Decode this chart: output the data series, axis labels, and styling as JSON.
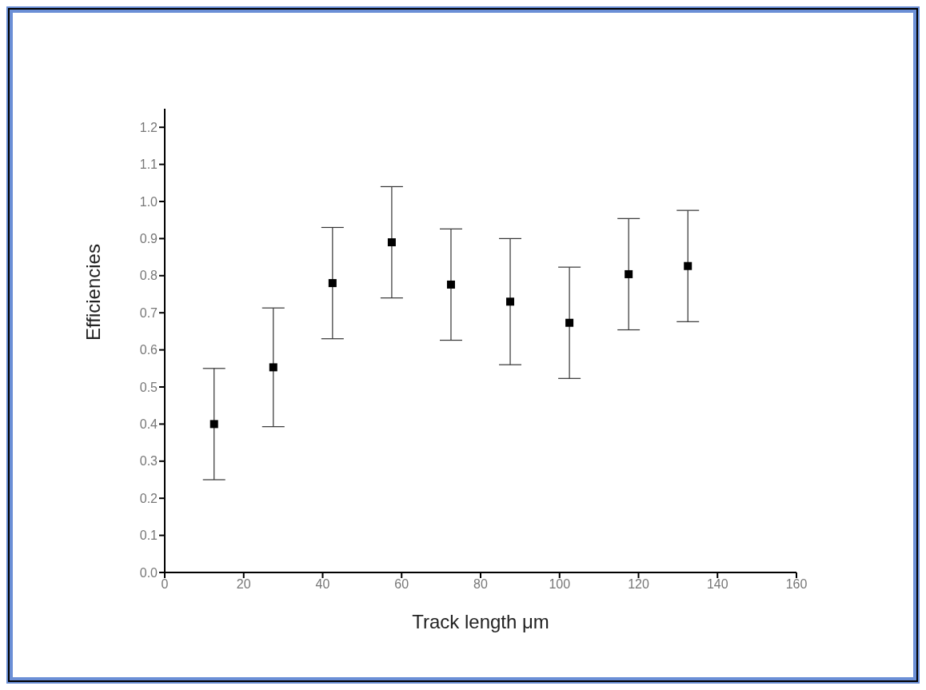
{
  "chart_data": {
    "type": "scatter",
    "xlabel": "Track length μm",
    "ylabel": "Efficiencies",
    "x": [
      12.5,
      27.5,
      42.5,
      57.5,
      72.5,
      87.5,
      102.5,
      117.5,
      132.5
    ],
    "values": [
      0.4,
      0.553,
      0.78,
      0.89,
      0.776,
      0.73,
      0.673,
      0.804,
      0.826
    ],
    "errors": [
      0.15,
      0.16,
      0.15,
      0.15,
      0.15,
      0.17,
      0.15,
      0.15,
      0.15
    ],
    "color": "#000000",
    "marker": "square",
    "grid": false,
    "legend": false,
    "xlim": [
      0,
      160
    ],
    "xticks": [
      0,
      20,
      40,
      60,
      80,
      100,
      120,
      140,
      160
    ],
    "ylim": [
      0,
      1.25
    ],
    "yticks": [
      {
        "value": 0,
        "label": "0.0"
      },
      0.1,
      0.2,
      0.3,
      0.4,
      0.5,
      0.6,
      0.7,
      0.8,
      0.9,
      {
        "value": 1,
        "label": "1.0"
      },
      1.1,
      1.2
    ]
  }
}
